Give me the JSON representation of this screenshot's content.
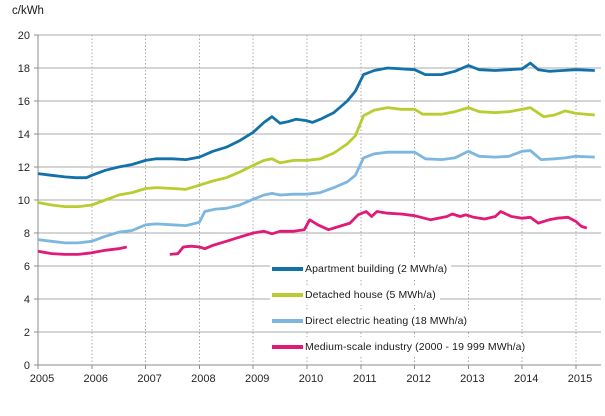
{
  "title": {
    "unit_label": "c/kWh"
  },
  "chart_data": {
    "type": "line",
    "title": "",
    "ylabel": "c/kWh",
    "xlabel": "",
    "ylim": [
      0,
      20
    ],
    "ytick_step": 2,
    "xlim": [
      2005,
      2015.47
    ],
    "x_tick_values": [
      2005,
      2006,
      2007,
      2008,
      2009,
      2010,
      2011,
      2012,
      2013,
      2014,
      2015
    ],
    "x_tick_labels": [
      "2005",
      "2006",
      "2007",
      "2008",
      "2009",
      "2010",
      "2011",
      "2012",
      "2013",
      "2014",
      "2015"
    ],
    "grid": true,
    "grid_color": "#ababab",
    "axis_color": "#8c8c8c",
    "text_color": "#262626",
    "legend_position": "inside-bottom-right",
    "series": [
      {
        "name": "Apartment building (2 MWh/a)",
        "color": "#1272a8",
        "points": [
          [
            2005.0,
            11.6
          ],
          [
            2005.25,
            11.5
          ],
          [
            2005.5,
            11.4
          ],
          [
            2005.7,
            11.35
          ],
          [
            2005.9,
            11.35
          ],
          [
            2006.0,
            11.5
          ],
          [
            2006.25,
            11.8
          ],
          [
            2006.5,
            12.0
          ],
          [
            2006.75,
            12.15
          ],
          [
            2007.0,
            12.4
          ],
          [
            2007.2,
            12.5
          ],
          [
            2007.5,
            12.5
          ],
          [
            2007.75,
            12.45
          ],
          [
            2008.0,
            12.6
          ],
          [
            2008.25,
            12.95
          ],
          [
            2008.5,
            13.2
          ],
          [
            2008.75,
            13.6
          ],
          [
            2009.0,
            14.1
          ],
          [
            2009.2,
            14.7
          ],
          [
            2009.35,
            15.05
          ],
          [
            2009.5,
            14.65
          ],
          [
            2009.65,
            14.75
          ],
          [
            2009.8,
            14.9
          ],
          [
            2010.0,
            14.8
          ],
          [
            2010.1,
            14.7
          ],
          [
            2010.25,
            14.9
          ],
          [
            2010.5,
            15.3
          ],
          [
            2010.75,
            16.0
          ],
          [
            2010.9,
            16.6
          ],
          [
            2011.05,
            17.6
          ],
          [
            2011.25,
            17.85
          ],
          [
            2011.5,
            18.0
          ],
          [
            2011.75,
            17.95
          ],
          [
            2012.0,
            17.9
          ],
          [
            2012.2,
            17.6
          ],
          [
            2012.5,
            17.6
          ],
          [
            2012.75,
            17.8
          ],
          [
            2013.0,
            18.15
          ],
          [
            2013.2,
            17.9
          ],
          [
            2013.5,
            17.85
          ],
          [
            2013.75,
            17.9
          ],
          [
            2014.0,
            17.95
          ],
          [
            2014.15,
            18.3
          ],
          [
            2014.3,
            17.9
          ],
          [
            2014.5,
            17.8
          ],
          [
            2014.75,
            17.85
          ],
          [
            2015.0,
            17.9
          ],
          [
            2015.35,
            17.85
          ]
        ]
      },
      {
        "name": "Detached house (5 MWh/a)",
        "color": "#b9cc30",
        "points": [
          [
            2005.0,
            9.85
          ],
          [
            2005.25,
            9.7
          ],
          [
            2005.5,
            9.6
          ],
          [
            2005.75,
            9.6
          ],
          [
            2006.0,
            9.7
          ],
          [
            2006.25,
            10.0
          ],
          [
            2006.5,
            10.3
          ],
          [
            2006.75,
            10.45
          ],
          [
            2007.0,
            10.7
          ],
          [
            2007.2,
            10.75
          ],
          [
            2007.5,
            10.7
          ],
          [
            2007.75,
            10.65
          ],
          [
            2008.0,
            10.9
          ],
          [
            2008.25,
            11.15
          ],
          [
            2008.5,
            11.35
          ],
          [
            2008.75,
            11.7
          ],
          [
            2009.0,
            12.1
          ],
          [
            2009.2,
            12.4
          ],
          [
            2009.35,
            12.5
          ],
          [
            2009.5,
            12.25
          ],
          [
            2009.75,
            12.4
          ],
          [
            2010.0,
            12.4
          ],
          [
            2010.25,
            12.5
          ],
          [
            2010.5,
            12.85
          ],
          [
            2010.75,
            13.4
          ],
          [
            2010.9,
            13.9
          ],
          [
            2011.05,
            15.1
          ],
          [
            2011.25,
            15.45
          ],
          [
            2011.5,
            15.6
          ],
          [
            2011.75,
            15.5
          ],
          [
            2012.0,
            15.5
          ],
          [
            2012.15,
            15.2
          ],
          [
            2012.5,
            15.2
          ],
          [
            2012.75,
            15.35
          ],
          [
            2013.0,
            15.6
          ],
          [
            2013.2,
            15.35
          ],
          [
            2013.5,
            15.3
          ],
          [
            2013.75,
            15.35
          ],
          [
            2014.0,
            15.5
          ],
          [
            2014.15,
            15.6
          ],
          [
            2014.4,
            15.05
          ],
          [
            2014.6,
            15.15
          ],
          [
            2014.8,
            15.4
          ],
          [
            2015.0,
            15.25
          ],
          [
            2015.35,
            15.15
          ]
        ]
      },
      {
        "name": "Direct electric heating (18 MWh/a)",
        "color": "#7db7e0",
        "points": [
          [
            2005.0,
            7.6
          ],
          [
            2005.25,
            7.5
          ],
          [
            2005.5,
            7.4
          ],
          [
            2005.75,
            7.4
          ],
          [
            2006.0,
            7.5
          ],
          [
            2006.25,
            7.8
          ],
          [
            2006.5,
            8.05
          ],
          [
            2006.75,
            8.15
          ],
          [
            2007.0,
            8.5
          ],
          [
            2007.2,
            8.55
          ],
          [
            2007.5,
            8.5
          ],
          [
            2007.75,
            8.45
          ],
          [
            2008.0,
            8.65
          ],
          [
            2008.1,
            9.3
          ],
          [
            2008.3,
            9.45
          ],
          [
            2008.5,
            9.5
          ],
          [
            2008.75,
            9.7
          ],
          [
            2009.0,
            10.05
          ],
          [
            2009.2,
            10.3
          ],
          [
            2009.35,
            10.4
          ],
          [
            2009.5,
            10.3
          ],
          [
            2009.75,
            10.35
          ],
          [
            2010.0,
            10.35
          ],
          [
            2010.25,
            10.45
          ],
          [
            2010.5,
            10.75
          ],
          [
            2010.75,
            11.1
          ],
          [
            2010.9,
            11.5
          ],
          [
            2011.05,
            12.55
          ],
          [
            2011.25,
            12.8
          ],
          [
            2011.5,
            12.9
          ],
          [
            2011.75,
            12.9
          ],
          [
            2012.0,
            12.9
          ],
          [
            2012.2,
            12.5
          ],
          [
            2012.5,
            12.45
          ],
          [
            2012.75,
            12.55
          ],
          [
            2013.0,
            12.95
          ],
          [
            2013.2,
            12.65
          ],
          [
            2013.5,
            12.6
          ],
          [
            2013.75,
            12.65
          ],
          [
            2014.0,
            12.95
          ],
          [
            2014.15,
            13.0
          ],
          [
            2014.35,
            12.45
          ],
          [
            2014.6,
            12.5
          ],
          [
            2014.8,
            12.55
          ],
          [
            2015.0,
            12.65
          ],
          [
            2015.35,
            12.6
          ]
        ]
      },
      {
        "name": "Medium-scale industry (2000 - 19 999 MWh/a)",
        "color": "#e01a78",
        "points": [
          [
            2005.0,
            6.9
          ],
          [
            2005.25,
            6.75
          ],
          [
            2005.5,
            6.7
          ],
          [
            2005.75,
            6.7
          ],
          [
            2006.0,
            6.8
          ],
          [
            2006.25,
            6.95
          ],
          [
            2006.5,
            7.05
          ],
          [
            2006.65,
            7.15
          ],
          null,
          [
            2007.45,
            6.7
          ],
          [
            2007.6,
            6.75
          ],
          [
            2007.7,
            7.15
          ],
          [
            2007.85,
            7.2
          ],
          [
            2008.0,
            7.15
          ],
          [
            2008.1,
            7.05
          ],
          [
            2008.25,
            7.25
          ],
          [
            2008.5,
            7.5
          ],
          [
            2008.75,
            7.75
          ],
          [
            2009.0,
            8.0
          ],
          [
            2009.2,
            8.1
          ],
          [
            2009.35,
            7.95
          ],
          [
            2009.5,
            8.1
          ],
          [
            2009.75,
            8.1
          ],
          [
            2009.95,
            8.2
          ],
          [
            2010.05,
            8.8
          ],
          [
            2010.2,
            8.5
          ],
          [
            2010.4,
            8.2
          ],
          [
            2010.6,
            8.4
          ],
          [
            2010.8,
            8.6
          ],
          [
            2010.95,
            9.1
          ],
          [
            2011.1,
            9.3
          ],
          [
            2011.2,
            9.0
          ],
          [
            2011.3,
            9.3
          ],
          [
            2011.5,
            9.2
          ],
          [
            2011.75,
            9.15
          ],
          [
            2012.0,
            9.05
          ],
          [
            2012.3,
            8.8
          ],
          [
            2012.6,
            9.0
          ],
          [
            2012.7,
            9.15
          ],
          [
            2012.85,
            9.0
          ],
          [
            2012.95,
            9.1
          ],
          [
            2013.1,
            8.95
          ],
          [
            2013.3,
            8.85
          ],
          [
            2013.5,
            9.0
          ],
          [
            2013.6,
            9.3
          ],
          [
            2013.8,
            9.0
          ],
          [
            2014.0,
            8.9
          ],
          [
            2014.15,
            8.95
          ],
          [
            2014.3,
            8.6
          ],
          [
            2014.5,
            8.8
          ],
          [
            2014.65,
            8.9
          ],
          [
            2014.85,
            8.95
          ],
          [
            2015.0,
            8.7
          ],
          [
            2015.1,
            8.4
          ],
          [
            2015.2,
            8.3
          ]
        ]
      }
    ]
  }
}
